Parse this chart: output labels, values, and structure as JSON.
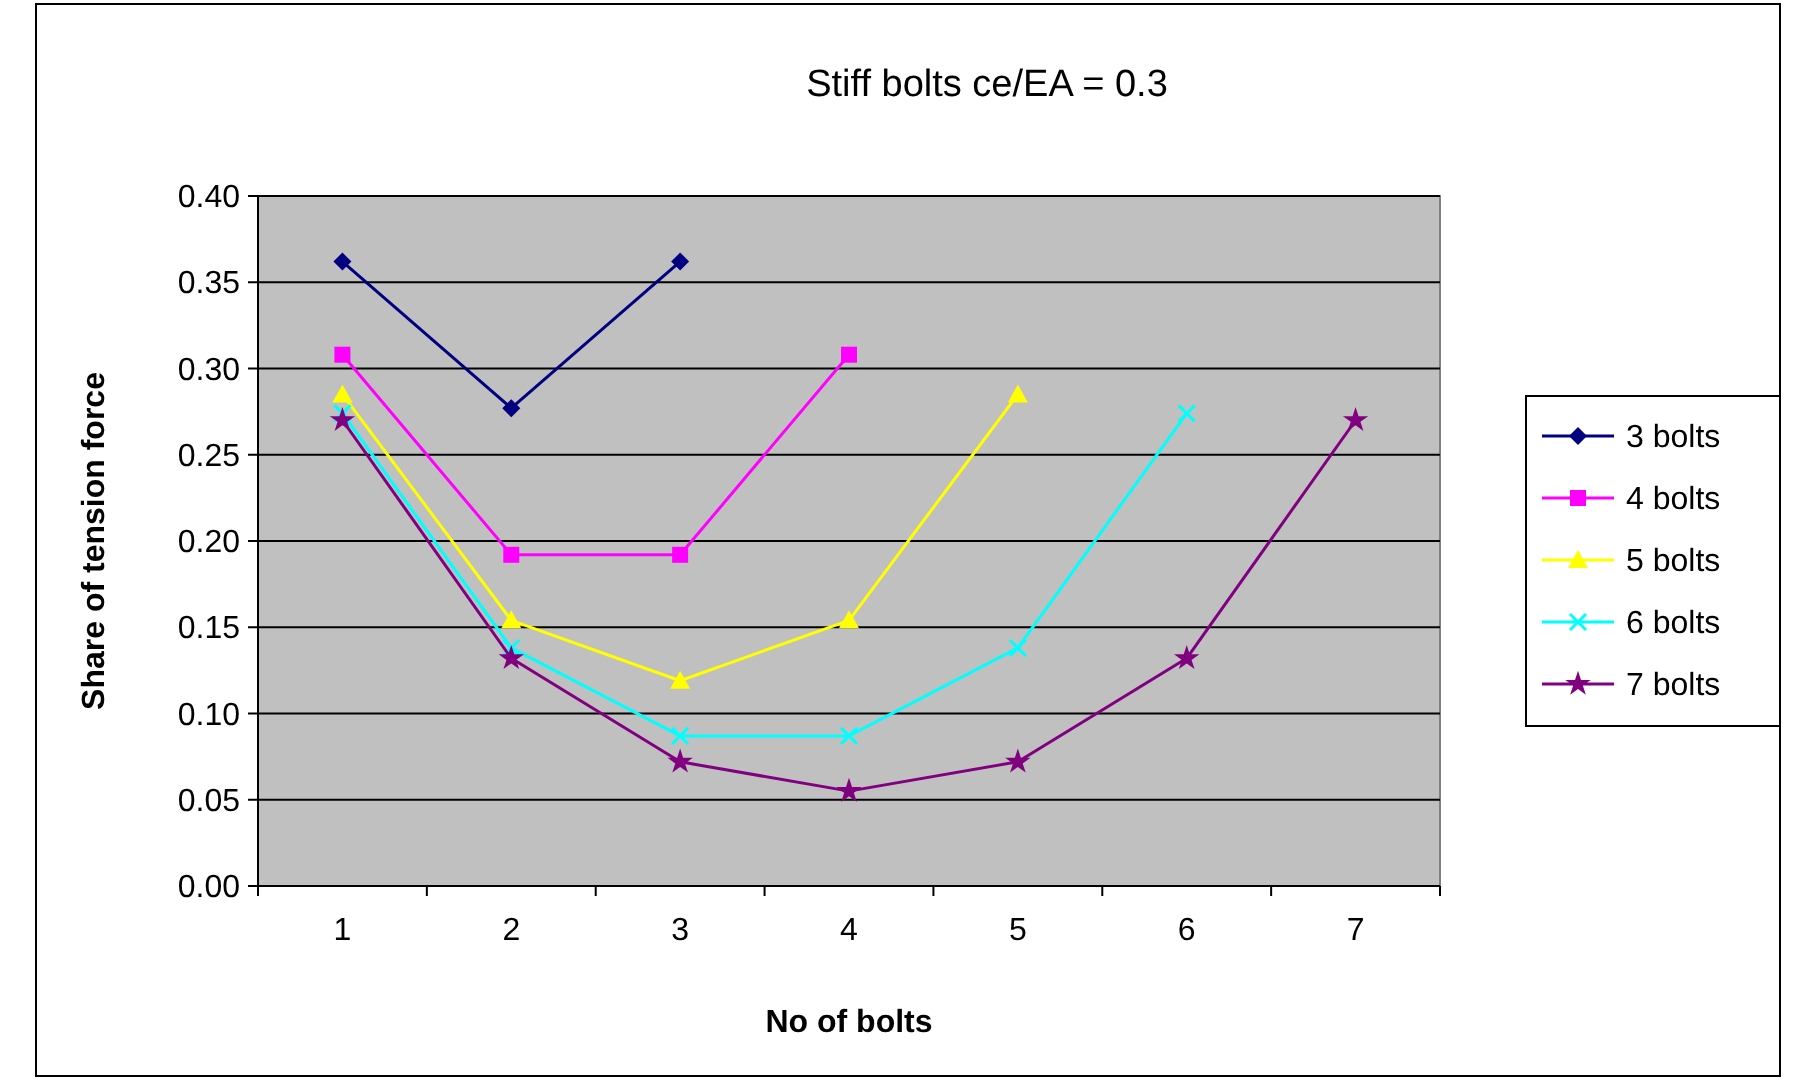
{
  "chart_data": {
    "type": "line",
    "title": "Stiff bolts ce/EA = 0.3",
    "xlabel": "No of bolts",
    "ylabel": "Share of tension force",
    "categories": [
      "1",
      "2",
      "3",
      "4",
      "5",
      "6",
      "7"
    ],
    "ylim": [
      0,
      0.4
    ],
    "yticks": [
      {
        "value": 0,
        "label": "0.00"
      },
      {
        "value": 0.05,
        "label": "0.05"
      },
      {
        "value": 0.1,
        "label": "0.10"
      },
      {
        "value": 0.15,
        "label": "0.15"
      },
      {
        "value": 0.2,
        "label": "0.20"
      },
      {
        "value": 0.25,
        "label": "0.25"
      },
      {
        "value": 0.3,
        "label": "0.30"
      },
      {
        "value": 0.35,
        "label": "0.35"
      },
      {
        "value": 0.4,
        "label": "0.40"
      }
    ],
    "grid": "y",
    "legend": "right",
    "line_style": "solid",
    "series": [
      {
        "name": "3 bolts",
        "color": "#000080",
        "marker": "diamond",
        "values": [
          0.362,
          0.277,
          0.362,
          null,
          null,
          null,
          null
        ]
      },
      {
        "name": "4 bolts",
        "color": "#ff00ff",
        "marker": "square",
        "values": [
          0.308,
          0.192,
          0.192,
          0.308,
          null,
          null,
          null
        ]
      },
      {
        "name": "5 bolts",
        "color": "#ffff00",
        "marker": "triangle",
        "values": [
          0.285,
          0.154,
          0.119,
          0.154,
          0.285,
          null,
          null
        ]
      },
      {
        "name": "6 bolts",
        "color": "#00ffff",
        "marker": "cross",
        "values": [
          0.274,
          0.138,
          0.087,
          0.087,
          0.138,
          0.274,
          null
        ]
      },
      {
        "name": "7 bolts",
        "color": "#800080",
        "marker": "star",
        "values": [
          0.27,
          0.132,
          0.072,
          0.055,
          0.072,
          0.132,
          0.27
        ]
      }
    ]
  }
}
